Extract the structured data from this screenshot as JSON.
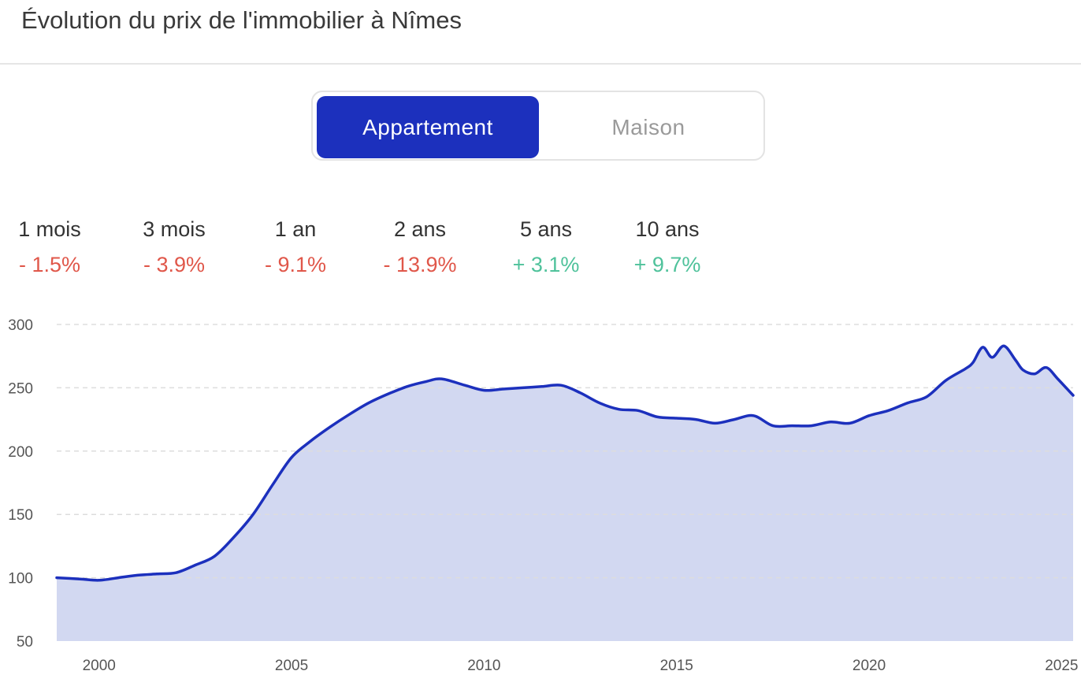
{
  "header": {
    "title": "Évolution du prix de l'immobilier à Nîmes"
  },
  "toggle": {
    "options": [
      "Appartement",
      "Maison"
    ],
    "selected": "Appartement"
  },
  "stats": [
    {
      "label": "1 mois",
      "value": "- 1.5%"
    },
    {
      "label": "3 mois",
      "value": "- 3.9%"
    },
    {
      "label": "1 an",
      "value": "- 9.1%"
    },
    {
      "label": "2 ans",
      "value": "- 13.9%"
    },
    {
      "label": "5 ans",
      "value": "+ 3.1%"
    },
    {
      "label": "10 ans",
      "value": "+ 9.7%"
    }
  ],
  "colors": {
    "accent": "#1c30bd",
    "fill": "#d2d8f1",
    "negative": "#e0574a",
    "positive": "#4fc29b",
    "grid": "#dddddd"
  },
  "chart_data": {
    "type": "area",
    "title": "",
    "xlabel": "",
    "ylabel": "",
    "ylim": [
      50,
      300
    ],
    "xlim": [
      1998.9,
      2025.3
    ],
    "yticks": [
      50,
      100,
      150,
      200,
      250,
      300
    ],
    "xticks": [
      2000,
      2005,
      2010,
      2015,
      2020,
      2025
    ],
    "grid": true,
    "series": [
      {
        "x": [
          1998.9,
          1999.5,
          2000.0,
          2000.5,
          2001.0,
          2001.5,
          2002.0,
          2002.5,
          2003.0,
          2003.5,
          2004.0,
          2004.5,
          2005.0,
          2005.5,
          2006.0,
          2006.5,
          2007.0,
          2007.5,
          2008.0,
          2008.5,
          2008.9,
          2009.5,
          2010.0,
          2010.5,
          2011.0,
          2011.5,
          2012.0,
          2012.5,
          2013.0,
          2013.5,
          2014.0,
          2014.5,
          2015.0,
          2015.5,
          2016.0,
          2016.5,
          2017.0,
          2017.5,
          2018.0,
          2018.5,
          2019.0,
          2019.5,
          2020.0,
          2020.5,
          2021.0,
          2021.5,
          2022.0,
          2022.5,
          2022.7,
          2022.95,
          2023.2,
          2023.5,
          2023.8,
          2024.0,
          2024.3,
          2024.6,
          2024.9,
          2025.3
        ],
        "values": [
          100,
          99,
          98,
          100,
          102,
          103,
          104,
          110,
          117,
          132,
          150,
          173,
          195,
          208,
          219,
          229,
          238,
          245,
          251,
          255,
          257,
          252,
          248,
          249,
          250,
          251,
          252,
          246,
          238,
          233,
          232,
          227,
          226,
          225,
          222,
          225,
          228,
          220,
          220,
          220,
          223,
          222,
          228,
          232,
          238,
          243,
          256,
          265,
          270,
          282,
          274,
          283,
          272,
          264,
          261,
          266,
          257,
          244
        ]
      }
    ]
  }
}
